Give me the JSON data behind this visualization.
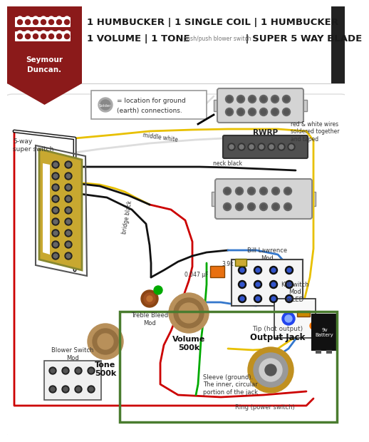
{
  "title_line1": "1 HUMBUCKER | 1 SINGLE COIL | 1 HUMBUCKER",
  "title_line2_bold": "1 VOLUME | 1 TONE",
  "title_line2_small": "push/push blower switch",
  "title_line2_end": "| SUPER 5 WAY BLADE",
  "bg_color": "#ffffff",
  "banner_color": "#8B1A1A",
  "border_color": "#4a7c2f",
  "label_5way": "5-way\nsuper switch",
  "label_rwrp": "RWRP",
  "label_middle_white": "middle white",
  "label_neck_black": "neck black",
  "label_bridge_black": "bridge black",
  "label_treble_bleed": "Treble Bleed\nMod",
  "label_tone": "Tone\n500k",
  "label_blower": "Blower Switch\nMod",
  "label_volume": "Volume\n500k",
  "label_killswitch": "Killswitch\nMod\nw/LED",
  "label_output": "Output Jack",
  "label_tip": "Tip (hot output)",
  "label_sleeve": "Sleeve (ground).\nThe inner, circular\nportion of the jack",
  "label_ring": "Ring (power switch)",
  "label_red_white": "red & white wires\nsoldered together\nand taped",
  "label_bill": "Bill Lawrence\nMod",
  "label_cap": "0.047 μF",
  "label_res": "3.9k",
  "label_battery": "9v\nBattery"
}
